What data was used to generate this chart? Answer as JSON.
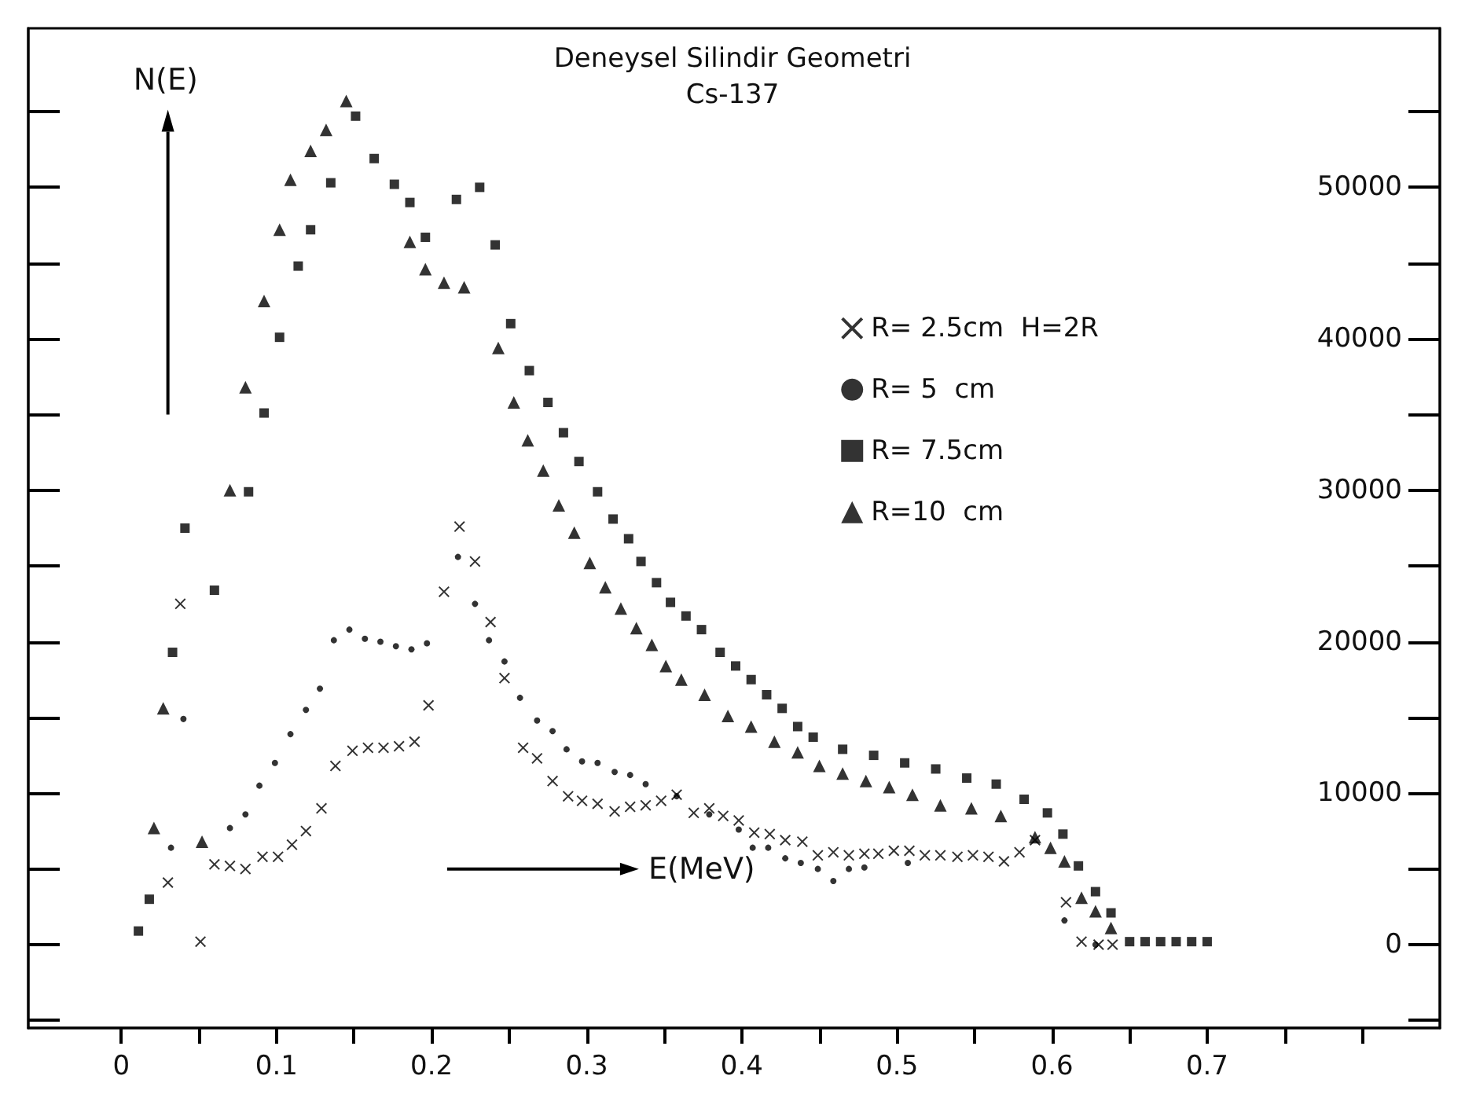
{
  "chart_data": {
    "type": "scatter",
    "title": "Deneysel Silindir Geometri",
    "subtitle": "Cs-137",
    "xlabel": "E(MeV)",
    "ylabel": "N(E)",
    "xlim": [
      -0.06,
      0.85
    ],
    "xticks": [
      {
        "value": 0,
        "label": "0"
      },
      {
        "value": 0.05,
        "label": null
      },
      {
        "value": 0.1,
        "label": "0.1"
      },
      {
        "value": 0.15,
        "label": null
      },
      {
        "value": 0.2,
        "label": "0.2"
      },
      {
        "value": 0.25,
        "label": null
      },
      {
        "value": 0.3,
        "label": "0.3"
      },
      {
        "value": 0.35,
        "label": null
      },
      {
        "value": 0.4,
        "label": "0.4"
      },
      {
        "value": 0.45,
        "label": null
      },
      {
        "value": 0.5,
        "label": "0.5"
      },
      {
        "value": 0.55,
        "label": null
      },
      {
        "value": 0.6,
        "label": "0.6"
      },
      {
        "value": 0.65,
        "label": null
      },
      {
        "value": 0.7,
        "label": "0.7"
      },
      {
        "value": 0.75,
        "label": null
      },
      {
        "value": 0.8,
        "label": null
      }
    ],
    "ylim": [
      -5500,
      60500
    ],
    "yticks": [
      0,
      10000,
      20000,
      30000,
      40000,
      50000
    ],
    "grid": false,
    "legend": "right",
    "series": [
      {
        "name": "R= 2.5cm  H=2R",
        "color": "#000000",
        "marker": "cross",
        "x": [
          0.03,
          0.038,
          0.051,
          0.06,
          0.07,
          0.08,
          0.091,
          0.101,
          0.11,
          0.119,
          0.129,
          0.138,
          0.149,
          0.159,
          0.169,
          0.179,
          0.189,
          0.198,
          0.208,
          0.218,
          0.228,
          0.238,
          0.247,
          0.259,
          0.268,
          0.278,
          0.288,
          0.297,
          0.307,
          0.318,
          0.328,
          0.338,
          0.348,
          0.358,
          0.369,
          0.379,
          0.388,
          0.398,
          0.408,
          0.418,
          0.428,
          0.439,
          0.449,
          0.459,
          0.469,
          0.479,
          0.488,
          0.498,
          0.508,
          0.518,
          0.528,
          0.539,
          0.549,
          0.559,
          0.569,
          0.579,
          0.589,
          0.609,
          0.619,
          0.63,
          0.639
        ],
        "values": [
          4100,
          22500,
          200,
          5300,
          5200,
          5000,
          5800,
          5800,
          6600,
          7500,
          9000,
          11800,
          12800,
          13000,
          13000,
          13100,
          13400,
          15800,
          23300,
          27600,
          25300,
          21300,
          17600,
          13000,
          12300,
          10800,
          9800,
          9500,
          9300,
          8800,
          9100,
          9200,
          9500,
          9900,
          8700,
          9000,
          8500,
          8200,
          7400,
          7300,
          6900,
          6800,
          5900,
          6100,
          5900,
          6000,
          6000,
          6200,
          6200,
          5900,
          5900,
          5800,
          5900,
          5800,
          5500,
          6100,
          6900,
          2800,
          200,
          0,
          0
        ]
      },
      {
        "name": "R= 5  cm",
        "color": "#000000",
        "marker": "circle",
        "x": [
          0.032,
          0.04,
          0.07,
          0.08,
          0.089,
          0.099,
          0.109,
          0.119,
          0.128,
          0.137,
          0.147,
          0.157,
          0.167,
          0.177,
          0.187,
          0.197,
          0.217,
          0.228,
          0.237,
          0.247,
          0.257,
          0.268,
          0.278,
          0.287,
          0.297,
          0.307,
          0.318,
          0.328,
          0.338,
          0.358,
          0.379,
          0.398,
          0.407,
          0.417,
          0.428,
          0.438,
          0.449,
          0.459,
          0.469,
          0.479,
          0.507,
          0.608,
          0.628
        ],
        "values": [
          6400,
          14900,
          7700,
          8600,
          10500,
          12000,
          13900,
          15500,
          16900,
          20100,
          20800,
          20200,
          20000,
          19700,
          19500,
          19900,
          25600,
          22500,
          20100,
          18700,
          16300,
          14800,
          14100,
          12900,
          12100,
          12000,
          11400,
          11200,
          10600,
          9800,
          8600,
          7600,
          6400,
          6400,
          5700,
          5400,
          5000,
          4200,
          5000,
          5100,
          5400,
          1600,
          0
        ]
      },
      {
        "name": "R= 7.5cm",
        "color": "#000000",
        "marker": "square",
        "x": [
          0.011,
          0.018,
          0.033,
          0.041,
          0.06,
          0.082,
          0.092,
          0.102,
          0.114,
          0.122,
          0.135,
          0.151,
          0.163,
          0.176,
          0.186,
          0.196,
          0.216,
          0.231,
          0.241,
          0.251,
          0.263,
          0.275,
          0.285,
          0.295,
          0.307,
          0.317,
          0.327,
          0.335,
          0.345,
          0.354,
          0.364,
          0.374,
          0.386,
          0.396,
          0.406,
          0.416,
          0.426,
          0.436,
          0.446,
          0.465,
          0.485,
          0.505,
          0.525,
          0.545,
          0.564,
          0.582,
          0.597,
          0.607,
          0.617,
          0.628,
          0.638,
          0.65,
          0.66,
          0.67,
          0.68,
          0.69,
          0.7
        ],
        "values": [
          900,
          3000,
          19300,
          27500,
          23400,
          29900,
          35100,
          40100,
          44800,
          47200,
          50300,
          54700,
          51900,
          50200,
          49000,
          46700,
          49200,
          50000,
          46200,
          41000,
          37900,
          35800,
          33800,
          31900,
          29900,
          28100,
          26800,
          25300,
          23900,
          22600,
          21700,
          20800,
          19300,
          18400,
          17500,
          16500,
          15600,
          14400,
          13700,
          12900,
          12500,
          12000,
          11600,
          11000,
          10600,
          9600,
          8700,
          7300,
          5200,
          3500,
          2100,
          200,
          200,
          200,
          200,
          200,
          200
        ]
      },
      {
        "name": "R=10  cm",
        "color": "#000000",
        "marker": "triangle",
        "x": [
          0.021,
          0.027,
          0.052,
          0.07,
          0.08,
          0.092,
          0.102,
          0.109,
          0.122,
          0.132,
          0.145,
          0.186,
          0.196,
          0.208,
          0.221,
          0.243,
          0.253,
          0.262,
          0.272,
          0.282,
          0.292,
          0.302,
          0.312,
          0.322,
          0.332,
          0.342,
          0.351,
          0.361,
          0.376,
          0.391,
          0.406,
          0.421,
          0.436,
          0.45,
          0.465,
          0.48,
          0.495,
          0.51,
          0.528,
          0.548,
          0.567,
          0.589,
          0.599,
          0.608,
          0.619,
          0.628,
          0.638
        ],
        "values": [
          7700,
          15600,
          6800,
          30000,
          36800,
          42500,
          47200,
          50500,
          52400,
          53800,
          55700,
          46400,
          44600,
          43700,
          43400,
          39400,
          35800,
          33300,
          31300,
          29000,
          27200,
          25200,
          23600,
          22200,
          20900,
          19800,
          18400,
          17500,
          16500,
          15100,
          14400,
          13400,
          12700,
          11800,
          11300,
          10800,
          10400,
          9900,
          9200,
          9000,
          8500,
          7100,
          6400,
          5500,
          3100,
          2200,
          1100
        ]
      }
    ]
  }
}
